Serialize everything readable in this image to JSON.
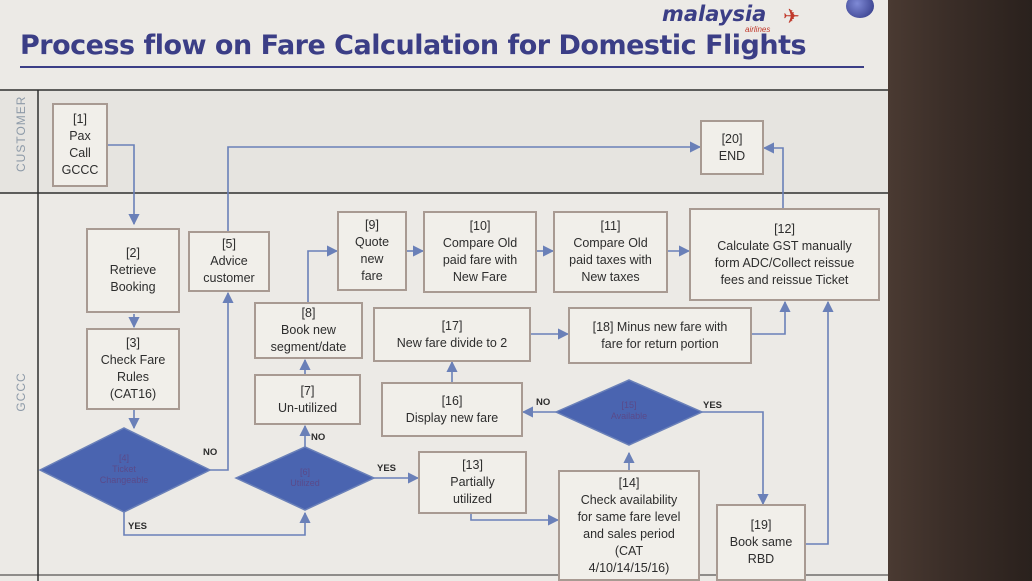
{
  "slide": {
    "title": "Process flow on Fare Calculation for Domestic Flights",
    "logo": "malaysia",
    "logo_sub": "airlines"
  },
  "lanes": {
    "customer": "CUSTOMER",
    "gccc": "GCCC"
  },
  "steps": {
    "s1": "[1]\nPax\nCall\nGCCC",
    "s2": "[2]\nRetrieve\nBooking",
    "s3": "[3]\nCheck Fare\nRules\n(CAT16)",
    "s4": "[4]\nTicket\nChangeable",
    "s5": "[5]\nAdvice\ncustomer",
    "s6": "[6]\nUtilized",
    "s7": "[7]\nUn-utilized",
    "s8": "[8]\nBook new\nsegment/date",
    "s9": "[9]\nQuote\nnew\nfare",
    "s10": "[10]\nCompare Old\npaid fare with\nNew Fare",
    "s11": "[11]\nCompare Old\npaid taxes with\nNew taxes",
    "s12": "[12]\nCalculate GST manually\nform ADC/Collect reissue\nfees and reissue Ticket",
    "s13": "[13]\nPartially\nutilized",
    "s14": "[14]\nCheck availability\nfor same fare level\nand sales period\n(CAT\n4/10/14/15/16)",
    "s15": "[15]\nAvailable",
    "s16": "[16]\nDisplay new fare",
    "s17": "[17]\nNew fare divide to 2",
    "s18": "[18] Minus new fare with\nfare for return portion",
    "s19": "[19]\nBook same\nRBD",
    "s20": "[20]\nEND"
  },
  "edge_labels": {
    "yes": "YES",
    "no": "NO"
  }
}
